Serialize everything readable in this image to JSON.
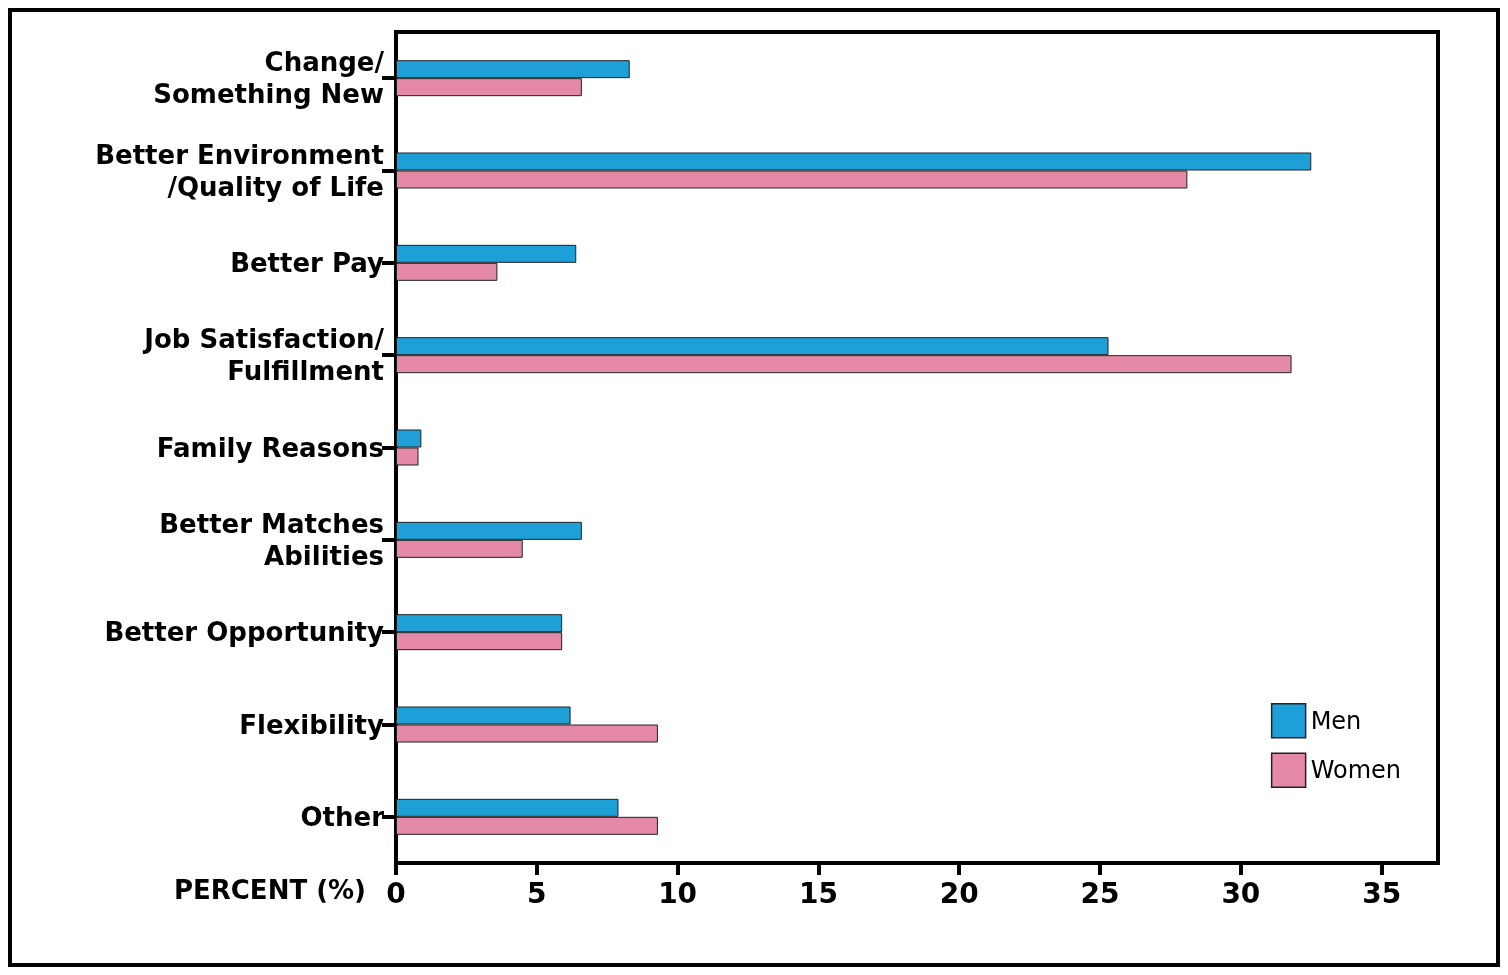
{
  "chart_data": {
    "type": "bar",
    "orientation": "horizontal",
    "xlabel": "PERCENT (%)",
    "categories": [
      "Change/\nSomething New",
      "Better Environment\n/Quality of Life",
      "Better Pay",
      "Job Satisfaction/\nFulfillment",
      "Family Reasons",
      "Better Matches\nAbilities",
      "Better Opportunity",
      "Flexibility",
      "Other"
    ],
    "series": [
      {
        "name": "Men",
        "color": "#1e9fd8",
        "values": [
          8.3,
          32.5,
          6.4,
          25.3,
          0.9,
          6.6,
          5.9,
          6.2,
          7.9
        ]
      },
      {
        "name": "Women",
        "color": "#e48aa8",
        "values": [
          6.6,
          28.1,
          3.6,
          31.8,
          0.8,
          4.5,
          5.9,
          9.3,
          9.3
        ]
      }
    ],
    "xlim": [
      0,
      37
    ],
    "xticks": [
      0,
      5,
      10,
      15,
      20,
      25,
      30,
      35
    ],
    "grid": false,
    "legend": "bottom right"
  }
}
